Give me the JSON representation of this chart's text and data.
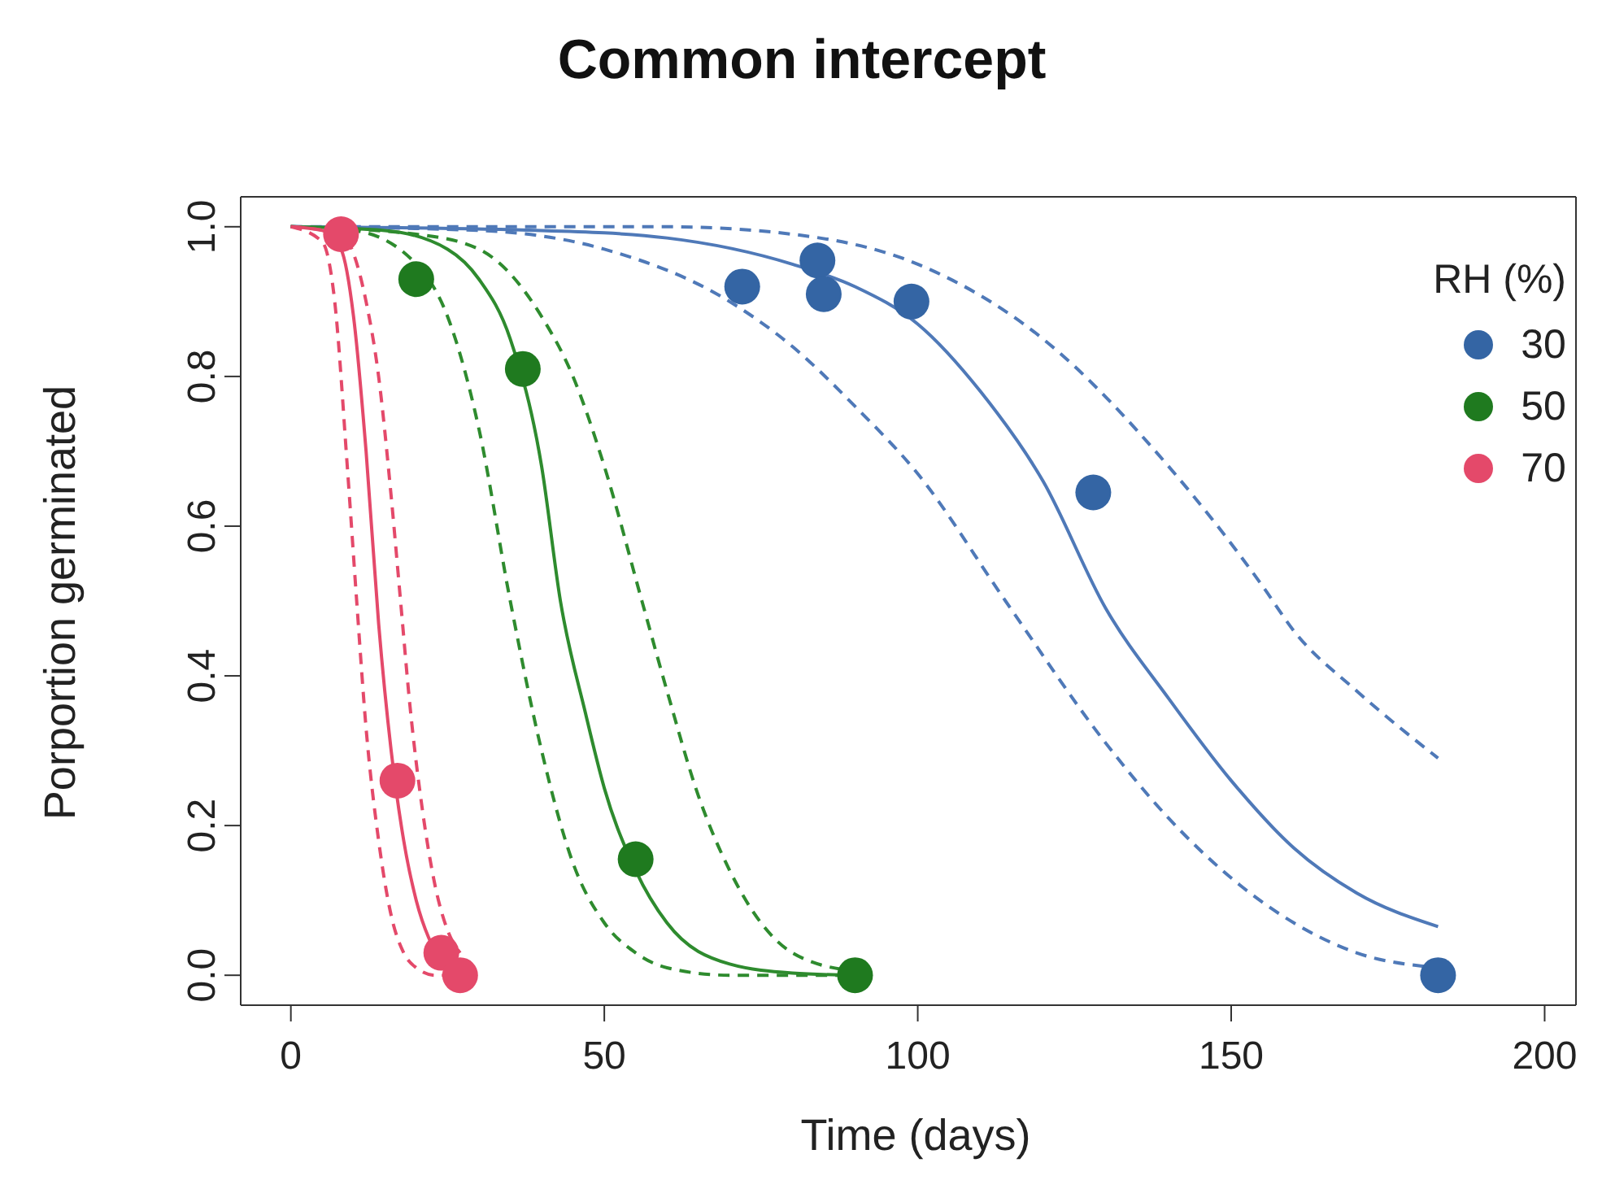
{
  "chart_data": {
    "type": "scatter",
    "title": "Common intercept",
    "xlabel": "Time (days)",
    "ylabel": "Porportion germinated",
    "legend_title": "RH (%)",
    "legend": "top right",
    "grid": false,
    "xlim": [
      -8,
      205
    ],
    "xticks": [
      0,
      50,
      100,
      150,
      200
    ],
    "ylim": [
      -0.04,
      1.04
    ],
    "yticks": [
      {
        "value": 0,
        "label": "0.0"
      },
      {
        "value": 0.2,
        "label": "0.2"
      },
      {
        "value": 0.4,
        "label": "0.4"
      },
      {
        "value": 0.6,
        "label": "0.6"
      },
      {
        "value": 0.8,
        "label": "0.8"
      },
      {
        "value": 1,
        "label": "1.0"
      }
    ],
    "series": [
      {
        "name": "30",
        "color": "#3465a4",
        "marker": "circle",
        "x": [
          72,
          84,
          85,
          99,
          128,
          183
        ],
        "values": [
          0.92,
          0.955,
          0.91,
          0.9,
          0.645,
          0.0
        ]
      },
      {
        "name": "50",
        "color": "#1f7a1f",
        "marker": "circle",
        "x": [
          20,
          37,
          55,
          90
        ],
        "values": [
          0.93,
          0.81,
          0.155,
          0.0
        ]
      },
      {
        "name": "70",
        "color": "#e4496a",
        "marker": "circle",
        "x": [
          8,
          17,
          24,
          27
        ],
        "values": [
          0.99,
          0.26,
          0.03,
          0.0
        ]
      },
      {
        "type": "line",
        "color": "#4f79b8",
        "marker": "none",
        "line_style": "solid",
        "x": [
          0,
          40,
          60,
          80,
          90,
          100,
          110,
          120,
          130,
          140,
          150,
          160,
          170,
          183
        ],
        "values": [
          1.0,
          0.995,
          0.985,
          0.95,
          0.92,
          0.87,
          0.78,
          0.66,
          0.49,
          0.37,
          0.26,
          0.17,
          0.11,
          0.065
        ]
      },
      {
        "type": "line",
        "color": "#4f79b8",
        "marker": "none",
        "line_style": "dashed",
        "x": [
          0,
          60,
          80,
          100,
          120,
          140,
          155,
          160,
          170,
          183
        ],
        "values": [
          1.0,
          1.0,
          0.99,
          0.95,
          0.85,
          0.68,
          0.52,
          0.46,
          0.38,
          0.29
        ]
      },
      {
        "type": "line",
        "color": "#4f79b8",
        "marker": "none",
        "line_style": "dashed",
        "x": [
          0,
          30,
          50,
          70,
          80,
          90,
          100,
          114,
          130,
          140,
          150,
          160,
          170,
          183
        ],
        "values": [
          1.0,
          0.995,
          0.97,
          0.9,
          0.84,
          0.76,
          0.67,
          0.5,
          0.31,
          0.21,
          0.13,
          0.07,
          0.03,
          0.01
        ]
      },
      {
        "type": "line",
        "color": "#2e8b2e",
        "marker": "none",
        "line_style": "solid",
        "x": [
          0,
          15,
          25,
          30,
          35,
          40,
          43,
          47,
          50,
          55,
          60,
          70,
          80,
          90
        ],
        "values": [
          1.0,
          0.995,
          0.97,
          0.93,
          0.85,
          0.68,
          0.5,
          0.35,
          0.25,
          0.14,
          0.07,
          0.015,
          0.003,
          0.0
        ]
      },
      {
        "type": "line",
        "color": "#2e8b2e",
        "marker": "none",
        "line_style": "dashed",
        "x": [
          0,
          10,
          20,
          25,
          30,
          35,
          40,
          45,
          50,
          55,
          60,
          70,
          90
        ],
        "values": [
          1.0,
          0.995,
          0.95,
          0.88,
          0.73,
          0.5,
          0.3,
          0.15,
          0.07,
          0.03,
          0.01,
          0.0,
          0.0
        ]
      },
      {
        "type": "line",
        "color": "#2e8b2e",
        "marker": "none",
        "line_style": "dashed",
        "x": [
          0,
          20,
          30,
          40,
          45,
          50,
          56,
          60,
          65,
          70,
          75,
          80,
          90
        ],
        "values": [
          1.0,
          0.99,
          0.97,
          0.88,
          0.8,
          0.68,
          0.5,
          0.38,
          0.24,
          0.14,
          0.07,
          0.03,
          0.005
        ]
      },
      {
        "type": "line",
        "color": "#e4496a",
        "marker": "none",
        "line_style": "solid",
        "x": [
          0,
          5,
          8,
          10,
          12,
          14,
          16,
          18,
          20,
          22,
          25,
          27
        ],
        "values": [
          1.0,
          0.995,
          0.97,
          0.88,
          0.7,
          0.47,
          0.3,
          0.18,
          0.1,
          0.05,
          0.015,
          0.005
        ]
      },
      {
        "type": "line",
        "color": "#e4496a",
        "marker": "none",
        "line_style": "dashed",
        "x": [
          0,
          5,
          7,
          9,
          10.5,
          12,
          14,
          16,
          18,
          20,
          23,
          27
        ],
        "values": [
          1.0,
          0.98,
          0.9,
          0.68,
          0.5,
          0.33,
          0.18,
          0.08,
          0.03,
          0.01,
          0.0,
          0.0
        ]
      },
      {
        "type": "line",
        "color": "#e4496a",
        "marker": "none",
        "line_style": "dashed",
        "x": [
          0,
          8,
          12,
          14,
          16,
          17.5,
          19,
          21,
          23,
          25,
          27
        ],
        "values": [
          1.0,
          0.99,
          0.9,
          0.8,
          0.64,
          0.5,
          0.36,
          0.22,
          0.12,
          0.06,
          0.03
        ]
      }
    ]
  }
}
